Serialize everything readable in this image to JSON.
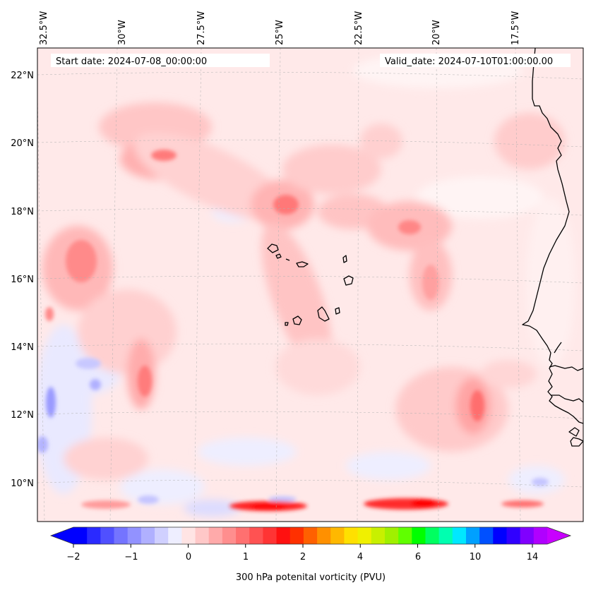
{
  "map": {
    "start_label": "Start date: 2024-07-08_00:00:00",
    "valid_label": "Valid_date: 2024-07-10T01:00:00.00",
    "lon_labels": [
      "32.5°W",
      "30°W",
      "27.5°W",
      "25°W",
      "22.5°W",
      "20°W",
      "17.5°W"
    ],
    "lat_labels": [
      "22°N",
      "20°N",
      "18°N",
      "16°N",
      "14°N",
      "12°N",
      "10°N"
    ],
    "variable": "300 hPa potential vorticity",
    "background_color": "#ffe9e9"
  },
  "colorbar": {
    "label": "300 hPa potenital vorticity (PVU)",
    "tick_labels": [
      "−2",
      "−1",
      "0",
      "1",
      "2",
      "4",
      "6",
      "10",
      "14"
    ],
    "colors": [
      "#0000ff",
      "#2a2aff",
      "#5050ff",
      "#7474ff",
      "#9292ff",
      "#b0b0ff",
      "#d0d0ff",
      "#eeeeff",
      "#ffe4e4",
      "#ffc8c8",
      "#ffaaaa",
      "#ff8e8e",
      "#ff7070",
      "#ff5252",
      "#ff3434",
      "#ff1010",
      "#ff3000",
      "#ff6000",
      "#ff9000",
      "#ffb800",
      "#ffe000",
      "#f0f000",
      "#c8f000",
      "#a0f000",
      "#60ff00",
      "#00ff00",
      "#00ff60",
      "#00ffb0",
      "#00e8ff",
      "#00a0ff",
      "#0050ff",
      "#0000ff",
      "#3000ff",
      "#8000ff",
      "#b000ff"
    ],
    "extend_low_color": "#0000ff",
    "extend_high_color": "#c800ff"
  }
}
